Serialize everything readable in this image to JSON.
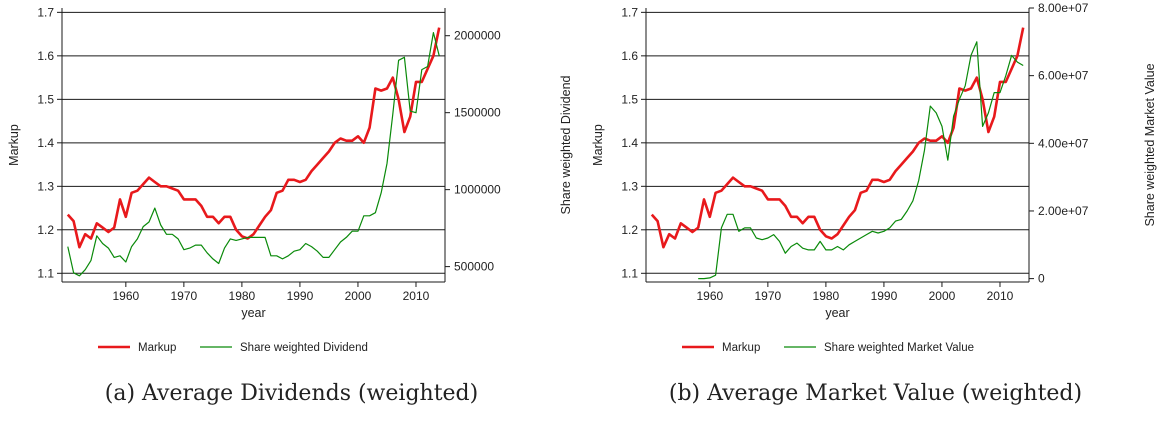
{
  "chart_data": [
    {
      "type": "line",
      "caption": "(a) Average Dividends (weighted)",
      "xlabel": "year",
      "ylabel_left": "Markup",
      "ylabel_right": "Share weighted Dividend",
      "xlim": [
        1949,
        2015
      ],
      "ylim_left": [
        1.08,
        1.71
      ],
      "ylim_right": [
        400000,
        2180000
      ],
      "xticks": [
        1960,
        1970,
        1980,
        1990,
        2000,
        2010
      ],
      "yticks_left": [
        "1.1",
        "1.2",
        "1.3",
        "1.4",
        "1.5",
        "1.6",
        "1.7"
      ],
      "yticks_left_values": [
        1.1,
        1.2,
        1.3,
        1.4,
        1.5,
        1.6,
        1.7
      ],
      "yticks_right": [
        "500000",
        "1000000",
        "1500000",
        "2000000"
      ],
      "yticks_right_values": [
        500000,
        1000000,
        1500000,
        2000000
      ],
      "legend_placement": "bottom",
      "grid": "horizontal",
      "series": [
        {
          "name": "Markup",
          "color": "#e8191c",
          "axis": "left",
          "x": [
            1950,
            1951,
            1952,
            1953,
            1954,
            1955,
            1956,
            1957,
            1958,
            1959,
            1960,
            1961,
            1962,
            1963,
            1964,
            1965,
            1966,
            1967,
            1968,
            1969,
            1970,
            1971,
            1972,
            1973,
            1974,
            1975,
            1976,
            1977,
            1978,
            1979,
            1980,
            1981,
            1982,
            1983,
            1984,
            1985,
            1986,
            1987,
            1988,
            1989,
            1990,
            1991,
            1992,
            1993,
            1994,
            1995,
            1996,
            1997,
            1998,
            1999,
            2000,
            2001,
            2002,
            2003,
            2004,
            2005,
            2006,
            2007,
            2008,
            2009,
            2010,
            2011,
            2012,
            2013,
            2014
          ],
          "y": [
            1.235,
            1.22,
            1.16,
            1.19,
            1.18,
            1.215,
            1.205,
            1.195,
            1.205,
            1.27,
            1.23,
            1.285,
            1.29,
            1.305,
            1.32,
            1.31,
            1.3,
            1.3,
            1.295,
            1.29,
            1.27,
            1.27,
            1.27,
            1.255,
            1.23,
            1.23,
            1.215,
            1.23,
            1.23,
            1.2,
            1.185,
            1.18,
            1.19,
            1.21,
            1.23,
            1.245,
            1.285,
            1.29,
            1.315,
            1.315,
            1.31,
            1.315,
            1.335,
            1.35,
            1.365,
            1.38,
            1.4,
            1.41,
            1.405,
            1.405,
            1.415,
            1.4,
            1.435,
            1.525,
            1.52,
            1.525,
            1.55,
            1.5,
            1.425,
            1.46,
            1.54,
            1.54,
            1.57,
            1.6,
            1.665
          ]
        },
        {
          "name": "Share weighted Dividend",
          "color": "#0a8a0a",
          "axis": "right",
          "x": [
            1950,
            1951,
            1952,
            1953,
            1954,
            1955,
            1956,
            1957,
            1958,
            1959,
            1960,
            1961,
            1962,
            1963,
            1964,
            1965,
            1966,
            1967,
            1968,
            1969,
            1970,
            1971,
            1972,
            1973,
            1974,
            1975,
            1976,
            1977,
            1978,
            1979,
            1980,
            1981,
            1982,
            1983,
            1984,
            1985,
            1986,
            1987,
            1988,
            1989,
            1990,
            1991,
            1992,
            1993,
            1994,
            1995,
            1996,
            1997,
            1998,
            1999,
            2000,
            2001,
            2002,
            2003,
            2004,
            2005,
            2006,
            2007,
            2008,
            2009,
            2010,
            2011,
            2012,
            2013,
            2014
          ],
          "y": [
            630000,
            460000,
            440000,
            480000,
            540000,
            700000,
            650000,
            620000,
            560000,
            570000,
            530000,
            630000,
            680000,
            760000,
            790000,
            880000,
            770000,
            710000,
            710000,
            680000,
            610000,
            620000,
            640000,
            640000,
            590000,
            550000,
            520000,
            620000,
            680000,
            670000,
            680000,
            690000,
            690000,
            690000,
            690000,
            570000,
            570000,
            550000,
            570000,
            600000,
            610000,
            650000,
            630000,
            600000,
            560000,
            560000,
            610000,
            660000,
            690000,
            730000,
            730000,
            830000,
            830000,
            850000,
            980000,
            1170000,
            1490000,
            1840000,
            1860000,
            1510000,
            1500000,
            1780000,
            1800000,
            2020000,
            1870000
          ]
        }
      ]
    },
    {
      "type": "line",
      "caption": "(b) Average Market Value (weighted)",
      "xlabel": "year",
      "ylabel_left": "Markup",
      "ylabel_right": "Share weighted Market Value",
      "xlim": [
        1949,
        2015
      ],
      "ylim_left": [
        1.08,
        1.71
      ],
      "ylim_right": [
        -1000000,
        80000000
      ],
      "xticks": [
        1960,
        1970,
        1980,
        1990,
        2000,
        2010
      ],
      "yticks_left": [
        "1.1",
        "1.2",
        "1.3",
        "1.4",
        "1.5",
        "1.6",
        "1.7"
      ],
      "yticks_left_values": [
        1.1,
        1.2,
        1.3,
        1.4,
        1.5,
        1.6,
        1.7
      ],
      "yticks_right": [
        "0",
        "2.00e+07",
        "4.00e+07",
        "6.00e+07",
        "8.00e+07"
      ],
      "yticks_right_values": [
        0,
        20000000,
        40000000,
        60000000,
        80000000
      ],
      "legend_placement": "bottom",
      "grid": "horizontal",
      "series": [
        {
          "name": "Markup",
          "color": "#e8191c",
          "axis": "left",
          "x": [
            1950,
            1951,
            1952,
            1953,
            1954,
            1955,
            1956,
            1957,
            1958,
            1959,
            1960,
            1961,
            1962,
            1963,
            1964,
            1965,
            1966,
            1967,
            1968,
            1969,
            1970,
            1971,
            1972,
            1973,
            1974,
            1975,
            1976,
            1977,
            1978,
            1979,
            1980,
            1981,
            1982,
            1983,
            1984,
            1985,
            1986,
            1987,
            1988,
            1989,
            1990,
            1991,
            1992,
            1993,
            1994,
            1995,
            1996,
            1997,
            1998,
            1999,
            2000,
            2001,
            2002,
            2003,
            2004,
            2005,
            2006,
            2007,
            2008,
            2009,
            2010,
            2011,
            2012,
            2013,
            2014
          ],
          "y": [
            1.235,
            1.22,
            1.16,
            1.19,
            1.18,
            1.215,
            1.205,
            1.195,
            1.205,
            1.27,
            1.23,
            1.285,
            1.29,
            1.305,
            1.32,
            1.31,
            1.3,
            1.3,
            1.295,
            1.29,
            1.27,
            1.27,
            1.27,
            1.255,
            1.23,
            1.23,
            1.215,
            1.23,
            1.23,
            1.2,
            1.185,
            1.18,
            1.19,
            1.21,
            1.23,
            1.245,
            1.285,
            1.29,
            1.315,
            1.315,
            1.31,
            1.315,
            1.335,
            1.35,
            1.365,
            1.38,
            1.4,
            1.41,
            1.405,
            1.405,
            1.415,
            1.4,
            1.435,
            1.525,
            1.52,
            1.525,
            1.55,
            1.5,
            1.425,
            1.46,
            1.54,
            1.54,
            1.57,
            1.6,
            1.665
          ]
        },
        {
          "name": "Share weighted Market Value",
          "color": "#0a8a0a",
          "axis": "right",
          "x": [
            1958,
            1959,
            1960,
            1961,
            1962,
            1963,
            1964,
            1965,
            1966,
            1967,
            1968,
            1969,
            1970,
            1971,
            1972,
            1973,
            1974,
            1975,
            1976,
            1977,
            1978,
            1979,
            1980,
            1981,
            1982,
            1983,
            1984,
            1985,
            1986,
            1987,
            1988,
            1989,
            1990,
            1991,
            1992,
            1993,
            1994,
            1995,
            1996,
            1997,
            1998,
            1999,
            2000,
            2001,
            2002,
            2003,
            2004,
            2005,
            2006,
            2007,
            2008,
            2009,
            2010,
            2011,
            2012,
            2013,
            2014
          ],
          "y": [
            0,
            0,
            200000,
            1000000,
            15000000,
            19000000,
            19000000,
            14000000,
            15000000,
            15000000,
            12000000,
            11500000,
            12000000,
            13000000,
            11000000,
            7500000,
            9500000,
            10500000,
            9000000,
            8500000,
            8500000,
            11000000,
            8500000,
            8500000,
            9500000,
            8500000,
            10000000,
            11000000,
            12000000,
            13000000,
            14000000,
            13500000,
            14000000,
            15000000,
            17000000,
            17500000,
            20000000,
            23000000,
            29000000,
            38000000,
            51000000,
            49000000,
            45000000,
            35000000,
            48000000,
            53000000,
            57000000,
            66000000,
            70000000,
            45000000,
            49000000,
            55000000,
            55000000,
            60000000,
            66000000,
            64000000,
            63000000
          ]
        }
      ]
    }
  ]
}
